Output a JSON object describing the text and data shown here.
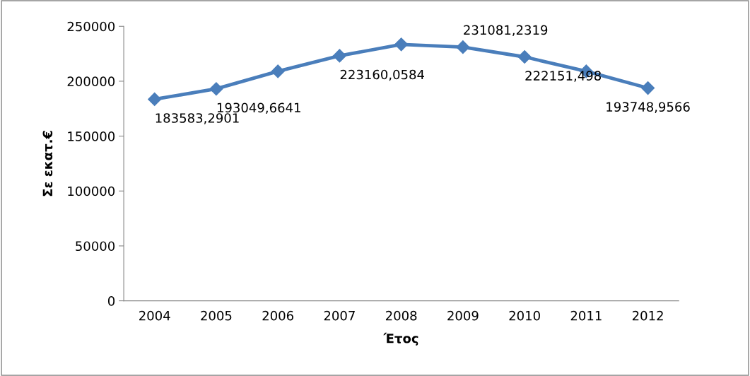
{
  "chart_data": {
    "type": "line",
    "xlabel": "Έτος",
    "ylabel": "Σε εκατ.€",
    "categories": [
      "2004",
      "2005",
      "2006",
      "2007",
      "2008",
      "2009",
      "2010",
      "2011",
      "2012"
    ],
    "series": [
      {
        "color": "#4a7ebb",
        "values": [
          183583.2901,
          193049.6641,
          209000,
          223160.0584,
          233500,
          231081.2319,
          222151.498,
          209000,
          193748.9566
        ],
        "value_labels": [
          "183583,2901",
          "193049,6641",
          null,
          "223160,0584",
          null,
          "231081,2319",
          "222151,498",
          null,
          "193748,9566"
        ]
      }
    ],
    "ylim": [
      0,
      250000
    ],
    "yticks": [
      0,
      50000,
      100000,
      150000,
      200000,
      250000
    ],
    "grid": false,
    "legend": false,
    "marker": "diamond",
    "line_style": "solid"
  }
}
